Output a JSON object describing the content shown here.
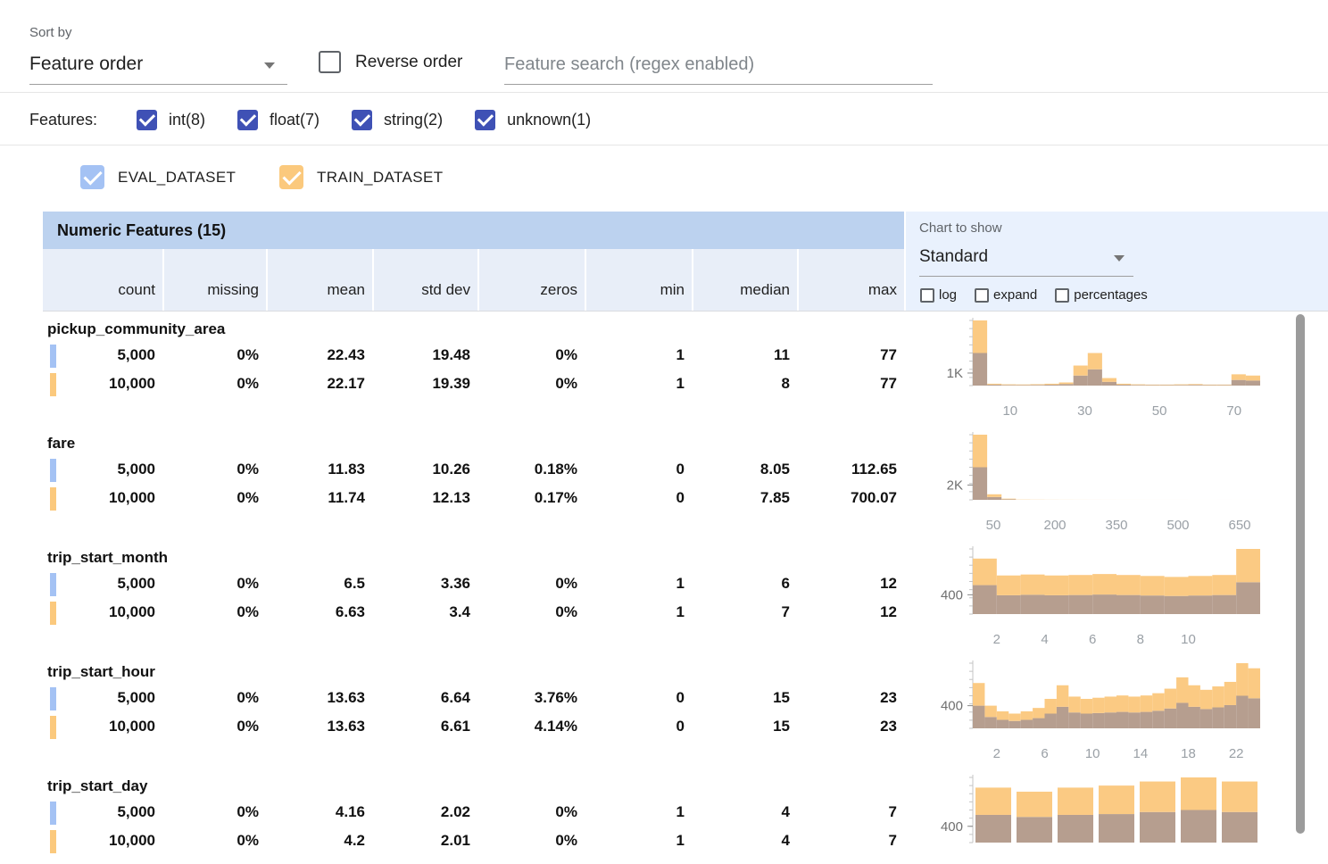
{
  "toolbar": {
    "sort_by_label": "Sort by",
    "sort_by_value": "Feature order",
    "reverse_order_label": "Reverse order",
    "search_placeholder": "Feature search (regex enabled)"
  },
  "features_bar": {
    "label": "Features:",
    "filters": [
      {
        "label": "int(8)",
        "checked": true
      },
      {
        "label": "float(7)",
        "checked": true
      },
      {
        "label": "string(2)",
        "checked": true
      },
      {
        "label": "unknown(1)",
        "checked": true
      }
    ]
  },
  "legend": {
    "eval_label": "EVAL_DATASET",
    "train_label": "TRAIN_DATASET"
  },
  "table": {
    "title": "Numeric Features (15)",
    "columns": [
      "count",
      "missing",
      "mean",
      "std dev",
      "zeros",
      "min",
      "median",
      "max"
    ]
  },
  "chart_controls": {
    "label": "Chart to show",
    "selected": "Standard",
    "toggles": [
      {
        "label": "log",
        "checked": false
      },
      {
        "label": "expand",
        "checked": false
      },
      {
        "label": "percentages",
        "checked": false
      }
    ]
  },
  "colors": {
    "accent_indigo": "#3f51b5",
    "eval_blue": "#a4c2f4",
    "train_orange": "#fbc97d",
    "chart_eval": "#a9c4ec",
    "chart_train": "#fbca83",
    "chart_overlap": "#b69e8f",
    "table_header_blue": "#bcd2ef",
    "controls_bg_blue": "#e9f1fd"
  },
  "features": [
    {
      "name": "pickup_community_area",
      "eval": {
        "count": "5,000",
        "missing": "0%",
        "mean": "22.43",
        "std_dev": "19.48",
        "zeros": "0%",
        "min": "1",
        "median": "11",
        "max": "77"
      },
      "train": {
        "count": "10,000",
        "missing": "0%",
        "mean": "22.17",
        "std_dev": "19.39",
        "zeros": "0%",
        "min": "1",
        "median": "8",
        "max": "77"
      }
    },
    {
      "name": "fare",
      "eval": {
        "count": "5,000",
        "missing": "0%",
        "mean": "11.83",
        "std_dev": "10.26",
        "zeros": "0.18%",
        "min": "0",
        "median": "8.05",
        "max": "112.65"
      },
      "train": {
        "count": "10,000",
        "missing": "0%",
        "mean": "11.74",
        "std_dev": "12.13",
        "zeros": "0.17%",
        "min": "0",
        "median": "7.85",
        "max": "700.07"
      }
    },
    {
      "name": "trip_start_month",
      "eval": {
        "count": "5,000",
        "missing": "0%",
        "mean": "6.5",
        "std_dev": "3.36",
        "zeros": "0%",
        "min": "1",
        "median": "6",
        "max": "12"
      },
      "train": {
        "count": "10,000",
        "missing": "0%",
        "mean": "6.63",
        "std_dev": "3.4",
        "zeros": "0%",
        "min": "1",
        "median": "7",
        "max": "12"
      }
    },
    {
      "name": "trip_start_hour",
      "eval": {
        "count": "5,000",
        "missing": "0%",
        "mean": "13.63",
        "std_dev": "6.64",
        "zeros": "3.76%",
        "min": "0",
        "median": "15",
        "max": "23"
      },
      "train": {
        "count": "10,000",
        "missing": "0%",
        "mean": "13.63",
        "std_dev": "6.61",
        "zeros": "4.14%",
        "min": "0",
        "median": "15",
        "max": "23"
      }
    },
    {
      "name": "trip_start_day",
      "eval": {
        "count": "5,000",
        "missing": "0%",
        "mean": "4.16",
        "std_dev": "2.02",
        "zeros": "0%",
        "min": "1",
        "median": "4",
        "max": "7"
      },
      "train": {
        "count": "10,000",
        "missing": "0%",
        "mean": "4.2",
        "std_dev": "2.01",
        "zeros": "0%",
        "min": "1",
        "median": "4",
        "max": "7"
      }
    }
  ],
  "chart_data": [
    {
      "type": "bar",
      "feature": "pickup_community_area",
      "x_domain": [
        0,
        77
      ],
      "x_ticks": [
        10,
        30,
        50,
        70
      ],
      "y_tick": {
        "label": "1K",
        "value": 1000
      },
      "bar_gap": 0,
      "series": [
        {
          "name": "TRAIN_DATASET",
          "values": [
            5200,
            150,
            100,
            90,
            110,
            150,
            250,
            1600,
            2600,
            600,
            150,
            100,
            80,
            80,
            100,
            120,
            80,
            80,
            900,
            800
          ]
        },
        {
          "name": "EVAL_DATASET",
          "values": [
            2600,
            80,
            50,
            45,
            55,
            75,
            125,
            800,
            1300,
            300,
            75,
            50,
            40,
            40,
            50,
            60,
            40,
            40,
            450,
            400
          ]
        }
      ]
    },
    {
      "type": "bar",
      "feature": "fare",
      "x_domain": [
        0,
        700
      ],
      "x_ticks": [
        50,
        200,
        350,
        500,
        650
      ],
      "y_tick": {
        "label": "2K",
        "value": 2000
      },
      "bar_gap": 0,
      "series": [
        {
          "name": "TRAIN_DATASET",
          "values": [
            8800,
            750,
            160,
            70,
            45,
            30,
            22,
            16,
            12,
            9,
            7,
            5,
            4,
            3,
            3,
            2,
            2,
            2,
            1,
            1
          ]
        },
        {
          "name": "EVAL_DATASET",
          "values": [
            4400,
            380,
            80,
            35,
            22,
            15,
            11,
            8,
            6,
            4,
            3,
            2,
            2,
            1,
            1,
            1,
            1,
            0,
            0,
            0
          ]
        }
      ]
    },
    {
      "type": "bar",
      "feature": "trip_start_month",
      "x_domain": [
        1,
        13
      ],
      "x_ticks": [
        2,
        4,
        6,
        8,
        10
      ],
      "y_tick": {
        "label": "400",
        "value": 400
      },
      "bar_gap": 0,
      "series": [
        {
          "name": "TRAIN_DATASET",
          "values": [
            1150,
            800,
            820,
            800,
            810,
            830,
            810,
            790,
            770,
            790,
            810,
            1350
          ]
        },
        {
          "name": "EVAL_DATASET",
          "values": [
            600,
            390,
            400,
            390,
            395,
            405,
            395,
            385,
            375,
            385,
            395,
            660
          ]
        }
      ]
    },
    {
      "type": "bar",
      "feature": "trip_start_hour",
      "x_domain": [
        0,
        24
      ],
      "x_ticks": [
        2,
        6,
        10,
        14,
        18,
        22
      ],
      "y_tick": {
        "label": "400",
        "value": 400
      },
      "bar_gap": 0,
      "series": [
        {
          "name": "TRAIN_DATASET",
          "values": [
            800,
            400,
            300,
            260,
            300,
            360,
            520,
            760,
            560,
            520,
            540,
            560,
            580,
            560,
            580,
            620,
            700,
            900,
            760,
            680,
            740,
            820,
            1150,
            1060
          ]
        },
        {
          "name": "EVAL_DATASET",
          "values": [
            400,
            200,
            150,
            130,
            150,
            180,
            260,
            380,
            280,
            260,
            270,
            280,
            290,
            280,
            290,
            310,
            350,
            450,
            380,
            340,
            370,
            410,
            575,
            530
          ]
        }
      ]
    },
    {
      "type": "bar",
      "feature": "trip_start_day",
      "x_domain": [
        1,
        8
      ],
      "x_ticks": [],
      "y_tick": {
        "label": "400",
        "value": 400
      },
      "bar_gap": 6,
      "series": [
        {
          "name": "TRAIN_DATASET",
          "values": [
            1350,
            1250,
            1350,
            1400,
            1500,
            1600,
            1500
          ]
        },
        {
          "name": "EVAL_DATASET",
          "values": [
            680,
            630,
            680,
            700,
            750,
            800,
            750
          ]
        }
      ]
    }
  ]
}
